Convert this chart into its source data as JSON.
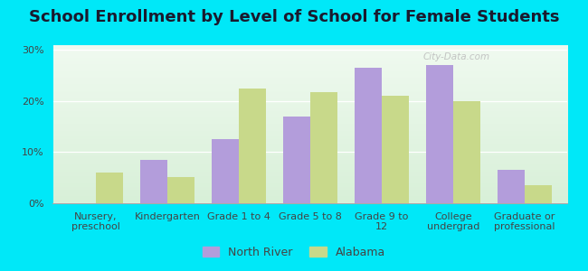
{
  "title": "School Enrollment by Level of School for Female Students",
  "categories": [
    "Nursery,\npreschool",
    "Kindergarten",
    "Grade 1 to 4",
    "Grade 5 to 8",
    "Grade 9 to\n12",
    "College\nundergrad",
    "Graduate or\nprofessional"
  ],
  "north_river": [
    0,
    8.5,
    12.5,
    17.0,
    26.5,
    27.0,
    6.5
  ],
  "alabama": [
    6.0,
    5.2,
    22.5,
    21.8,
    21.0,
    20.0,
    3.5
  ],
  "north_river_color": "#b39ddb",
  "alabama_color": "#c8d98a",
  "background_outer": "#00e8f8",
  "ylabel_ticks": [
    "0%",
    "10%",
    "20%",
    "30%"
  ],
  "ytick_vals": [
    0,
    10,
    20,
    30
  ],
  "ylim": [
    0,
    31
  ],
  "legend_labels": [
    "North River",
    "Alabama"
  ],
  "title_fontsize": 13,
  "tick_fontsize": 8,
  "legend_fontsize": 9,
  "bar_width": 0.38,
  "gradient_top": "#f0faf0",
  "gradient_bottom": "#d8f0d8"
}
